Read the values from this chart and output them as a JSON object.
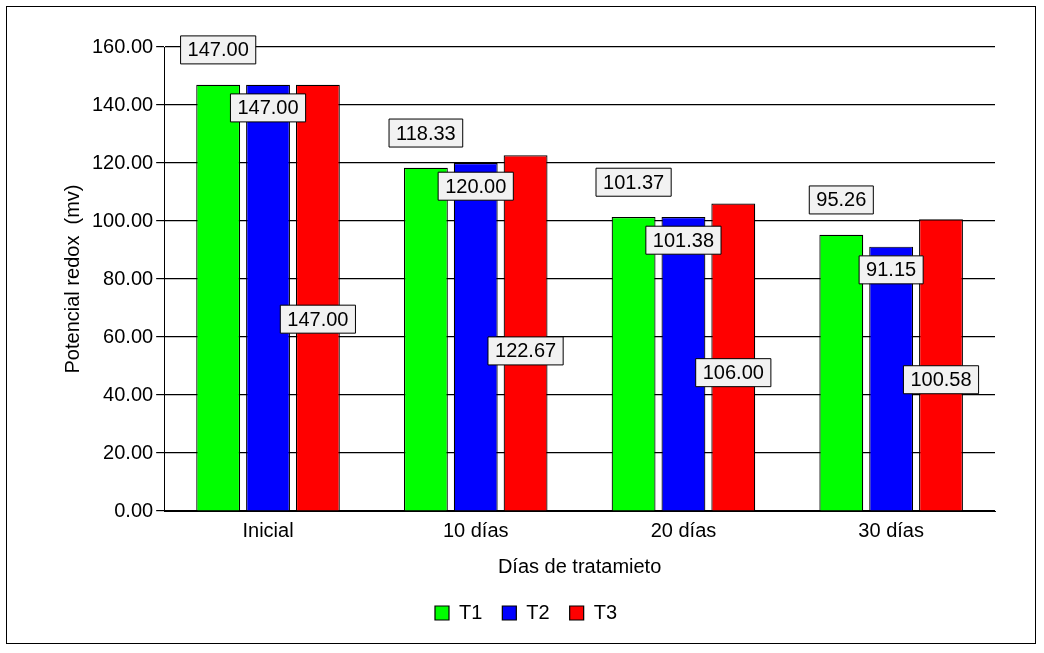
{
  "chart_data": {
    "type": "bar",
    "xlabel": "Días de tratamieto",
    "ylabel": "Potencial redox  (mv)",
    "categories": [
      "Inicial",
      "10 días",
      "20 días",
      "30 días"
    ],
    "series": [
      {
        "name": "T1",
        "color": "#00ff00",
        "values": [
          147.0,
          118.33,
          101.37,
          95.26
        ],
        "value_labels": [
          "147.00",
          "118.33",
          "101.37",
          "95.26"
        ]
      },
      {
        "name": "T2",
        "color": "#0000ff",
        "values": [
          147.0,
          120.0,
          101.38,
          91.15
        ],
        "value_labels": [
          "147.00",
          "120.00",
          "101.38",
          "91.15"
        ]
      },
      {
        "name": "T3",
        "color": "#ff0000",
        "values": [
          147.0,
          122.67,
          106.0,
          100.58
        ],
        "value_labels": [
          "147.00",
          "122.67",
          "106.00",
          "100.58"
        ]
      }
    ],
    "ylim": [
      0,
      160
    ],
    "yticks": [
      {
        "value": 0,
        "label": "0.00"
      },
      {
        "value": 20,
        "label": "20.00"
      },
      {
        "value": 40,
        "label": "40.00"
      },
      {
        "value": 60,
        "label": "60.00"
      },
      {
        "value": 80,
        "label": "80.00"
      },
      {
        "value": 100,
        "label": "100.00"
      },
      {
        "value": 120,
        "label": "120.00"
      },
      {
        "value": 140,
        "label": "140.00"
      },
      {
        "value": 160,
        "label": "160.00"
      }
    ],
    "grid": "y",
    "legend": "bottom"
  }
}
